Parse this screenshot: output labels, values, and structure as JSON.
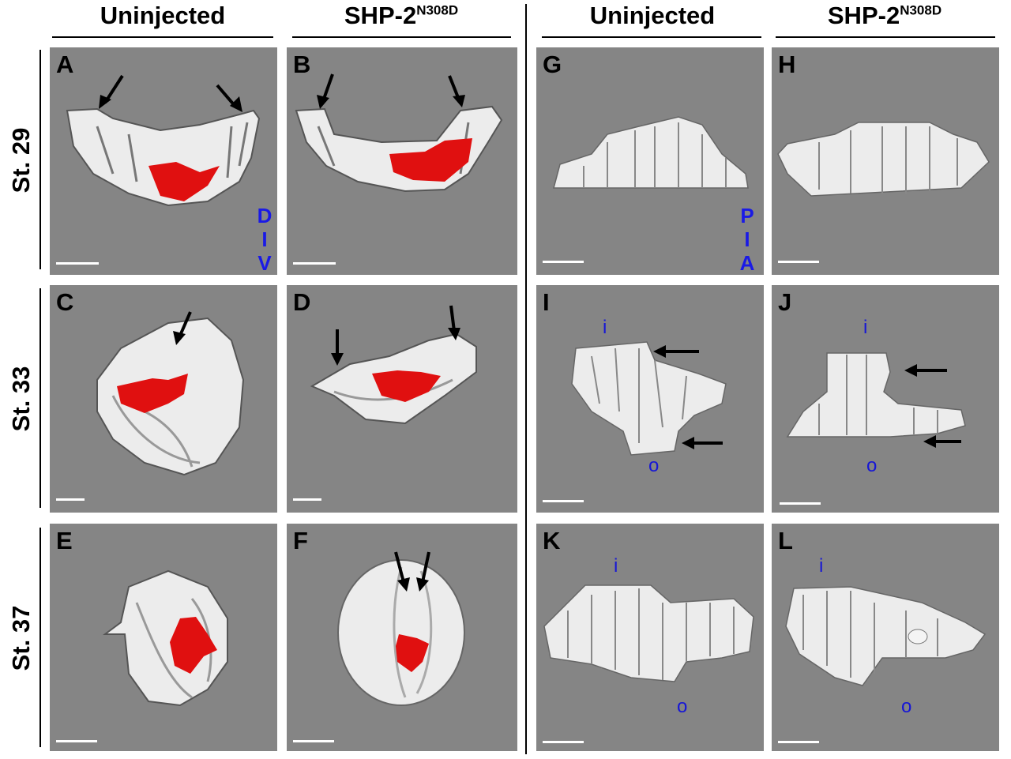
{
  "columns": {
    "uninjected_left": "Uninjected",
    "shp_left_main": "SHP-2",
    "shp_left_sup": "N308D",
    "uninjected_right": "Uninjected",
    "shp_right_main": "SHP-2",
    "shp_right_sup": "N308D"
  },
  "rows": {
    "r1": "St. 29",
    "r2": "St. 33",
    "r3": "St. 37"
  },
  "panels": {
    "A": "A",
    "B": "B",
    "C": "C",
    "D": "D",
    "E": "E",
    "F": "F",
    "G": "G",
    "H": "H",
    "I": "I",
    "J": "J",
    "K": "K",
    "L": "L"
  },
  "orientation_left": {
    "top": "D",
    "mid": "I",
    "bottom": "V"
  },
  "orientation_right": {
    "top": "P",
    "mid": "I",
    "bottom": "A"
  },
  "inner_label": "i",
  "outer_label": "o",
  "colors": {
    "panel_bg": "#858585",
    "surface": "#efefef",
    "lens_red": "#e01010",
    "axis_blue": "#1a1ae6"
  }
}
